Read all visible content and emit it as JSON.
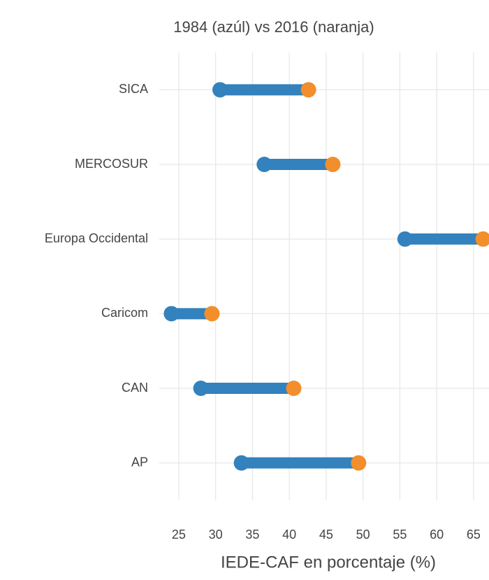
{
  "chart_data": {
    "type": "dumbbell",
    "title": "1984 (azúl) vs 2016 (naranja)",
    "x_label": "IEDE-CAF en porcentaje (%)",
    "categories": [
      "AP",
      "CAN",
      "Caricom",
      "Europa Occidental",
      "MERCOSUR",
      "SICA"
    ],
    "series": [
      {
        "color": "#3381bd",
        "values": [
          33.5,
          28.0,
          24.0,
          55.7,
          36.6,
          30.6
        ]
      },
      {
        "color": "#f28e2b",
        "values": [
          49.4,
          40.6,
          29.5,
          66.3,
          45.9,
          42.6
        ]
      }
    ],
    "xlim": [
      22.35,
      67.1
    ],
    "xticks": [
      25,
      30,
      35,
      40,
      45,
      50,
      55,
      60,
      65
    ],
    "grid": true
  }
}
